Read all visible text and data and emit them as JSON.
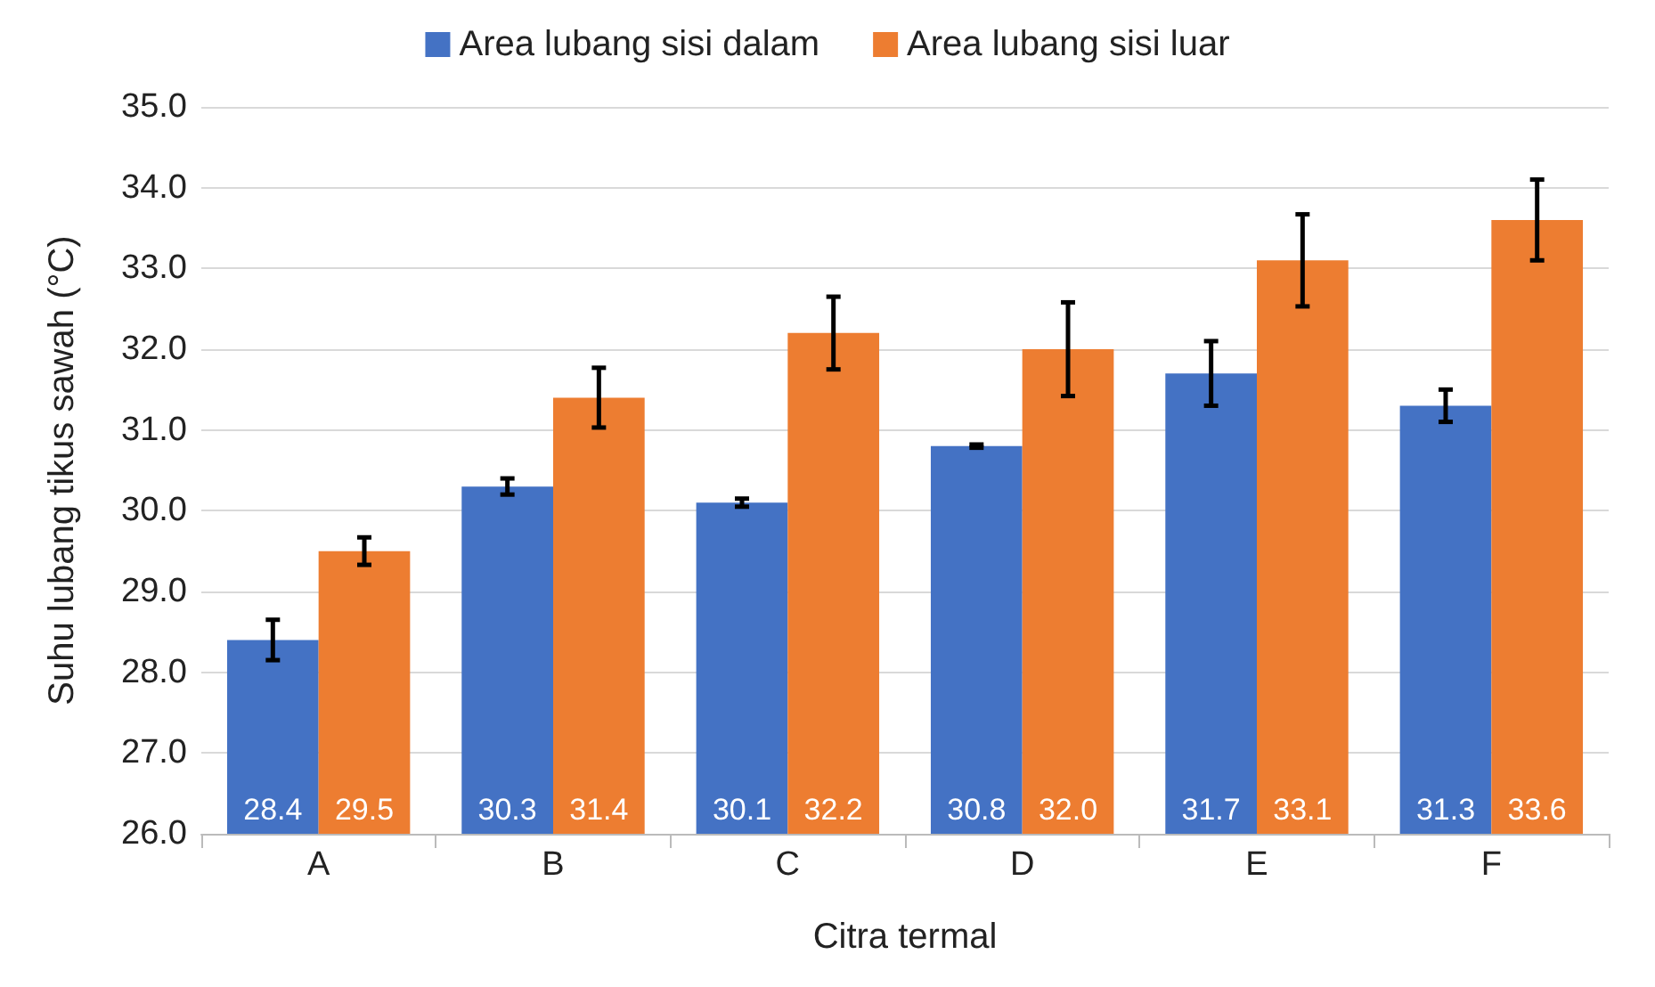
{
  "chart_data": {
    "type": "bar",
    "xlabel": "Citra termal",
    "ylabel": "Suhu lubang tikus sawah (°C)",
    "categories": [
      "A",
      "B",
      "C",
      "D",
      "E",
      "F"
    ],
    "series": [
      {
        "name": "Area lubang sisi dalam",
        "color": "#4472c4",
        "values": [
          28.4,
          30.3,
          30.1,
          30.8,
          31.7,
          31.3
        ],
        "errors": [
          0.25,
          0.1,
          0.05,
          0.02,
          0.4,
          0.2
        ],
        "value_labels": [
          "28.4",
          "30.3",
          "30.1",
          "30.8",
          "31.7",
          "31.3"
        ]
      },
      {
        "name": "Area lubang sisi luar",
        "color": "#ed7d31",
        "values": [
          29.5,
          31.4,
          32.2,
          32.0,
          33.1,
          33.6
        ],
        "errors": [
          0.17,
          0.37,
          0.45,
          0.58,
          0.57,
          0.5
        ],
        "value_labels": [
          "29.5",
          "31.4",
          "32.2",
          "32.0",
          "33.1",
          "33.6"
        ]
      }
    ],
    "ylim": [
      26,
      35
    ],
    "yticks": [
      {
        "value": 26,
        "label": "26.0"
      },
      {
        "value": 27,
        "label": "27.0"
      },
      {
        "value": 28,
        "label": "28.0"
      },
      {
        "value": 29,
        "label": "29.0"
      },
      {
        "value": 30,
        "label": "30.0"
      },
      {
        "value": 31,
        "label": "31.0"
      },
      {
        "value": 32,
        "label": "32.0"
      },
      {
        "value": 33,
        "label": "33.0"
      },
      {
        "value": 34,
        "label": "34.0"
      },
      {
        "value": 35,
        "label": "35.0"
      }
    ],
    "grid": "y",
    "legend": "top"
  }
}
